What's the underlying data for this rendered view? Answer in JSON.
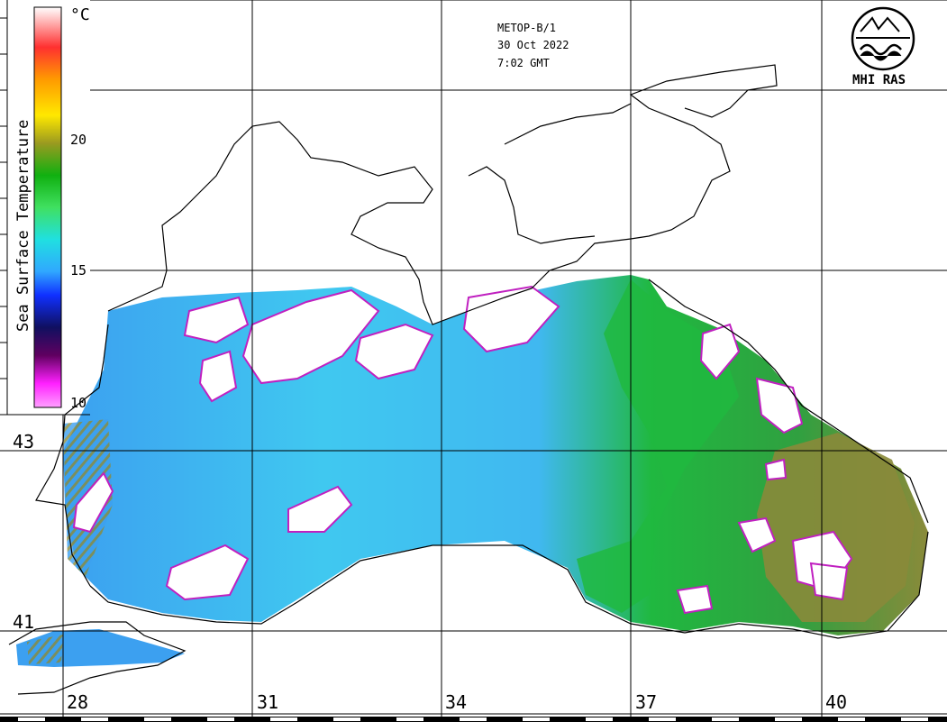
{
  "header": {
    "satellite": "METOP-B/1",
    "date": "30 Oct 2022",
    "time": "7:02 GMT"
  },
  "logo": {
    "label": "MHI RAS",
    "icon": "mhi-ras-logo-icon"
  },
  "legend": {
    "title": "Sea Surface Temperature",
    "unit": "°C",
    "ticks": [
      "20",
      "15",
      "10"
    ],
    "colors": {
      "warm_top": "#ffffff",
      "red": "#ff3030",
      "orange": "#ff9a00",
      "yellow": "#ffe800",
      "olive": "#9a9a20",
      "green": "#10b010",
      "green_light": "#40e060",
      "cyan": "#20e0e0",
      "sky": "#30a8ff",
      "blue": "#1030ff",
      "navy": "#101060",
      "dark_purple": "#600060",
      "magenta": "#ff20ff",
      "pink": "#ffa0ff"
    }
  },
  "axes": {
    "latitude_labels": [
      "43",
      "41"
    ],
    "longitude_labels": [
      "28",
      "31",
      "34",
      "37",
      "40"
    ]
  },
  "palette": {
    "sea_blue": "#3ca0f0",
    "sea_cyan": "#40d8f0",
    "sea_green": "#20b840",
    "sea_olive": "#8a8a3a",
    "cloud": "#ffffff",
    "cloud_edge": "#c020c0"
  }
}
